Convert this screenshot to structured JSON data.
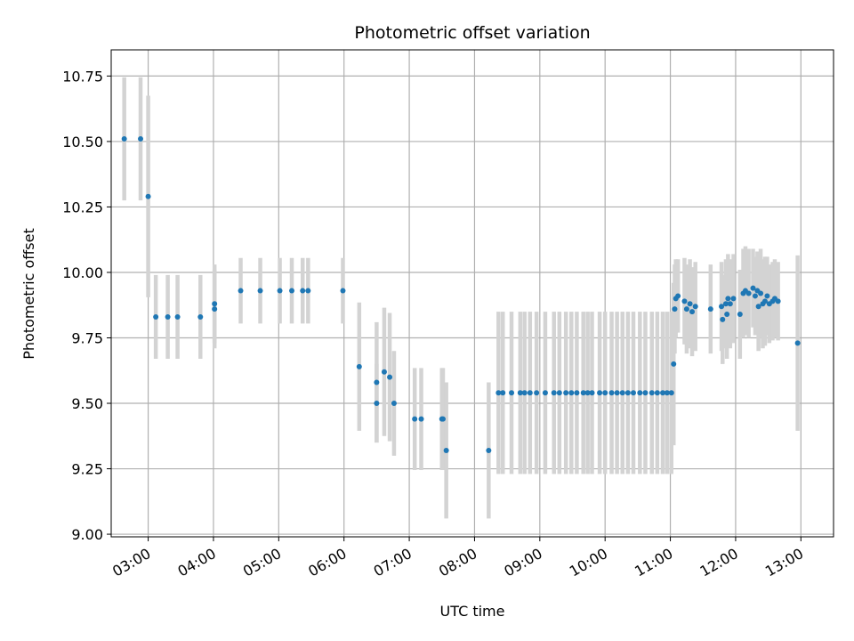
{
  "chart_data": {
    "type": "scatter",
    "title": "Photometric offset variation",
    "xlabel": "UTC time",
    "ylabel": "Photometric offset",
    "grid": true,
    "xlim": [
      "02:26",
      "13:30"
    ],
    "ylim": [
      8.99,
      10.85
    ],
    "x_ticks": [
      "03:00",
      "04:00",
      "05:00",
      "06:00",
      "07:00",
      "08:00",
      "09:00",
      "10:00",
      "11:00",
      "12:00",
      "13:00"
    ],
    "y_ticks": [
      "9.00",
      "9.25",
      "9.50",
      "9.75",
      "10.00",
      "10.25",
      "10.50",
      "10.75"
    ],
    "colors": {
      "points": "#1f77b4",
      "error_bars": "#d3d3d3",
      "grid": "#b0b0b0"
    },
    "series": [
      {
        "x": [
          "02:38",
          "02:53",
          "03:00",
          "03:07",
          "03:18",
          "03:27",
          "03:48",
          "04:01",
          "04:01",
          "04:25",
          "04:43",
          "05:01",
          "05:12",
          "05:22",
          "05:27",
          "05:59",
          "06:14",
          "06:30",
          "06:30",
          "06:37",
          "06:42",
          "06:46",
          "07:05",
          "07:11",
          "07:30",
          "07:31",
          "07:34",
          "08:13",
          "08:22",
          "08:26",
          "08:34",
          "08:42",
          "08:46",
          "08:51",
          "08:57",
          "09:05",
          "09:13",
          "09:18",
          "09:24",
          "09:29",
          "09:34",
          "09:40",
          "09:44",
          "09:48",
          "09:55",
          "10:00",
          "10:06",
          "10:11",
          "10:16",
          "10:21",
          "10:26",
          "10:32",
          "10:37",
          "10:43",
          "10:48",
          "10:53",
          "10:57",
          "11:01",
          "11:03",
          "11:04",
          "11:05",
          "11:07",
          "11:13",
          "11:15",
          "11:18",
          "11:20",
          "11:23",
          "11:37",
          "11:47",
          "11:48",
          "11:51",
          "11:52",
          "11:53",
          "11:55",
          "11:58",
          "12:04",
          "12:07",
          "12:09",
          "12:12",
          "12:16",
          "12:18",
          "12:20",
          "12:21",
          "12:23",
          "12:25",
          "12:27",
          "12:29",
          "12:31",
          "12:34",
          "12:36",
          "12:39",
          "12:57"
        ],
        "y": [
          10.51,
          10.51,
          10.29,
          9.83,
          9.83,
          9.83,
          9.83,
          9.86,
          9.88,
          9.93,
          9.93,
          9.93,
          9.93,
          9.93,
          9.93,
          9.93,
          9.64,
          9.58,
          9.5,
          9.62,
          9.6,
          9.5,
          9.44,
          9.44,
          9.44,
          9.44,
          9.32,
          9.32,
          9.54,
          9.54,
          9.54,
          9.54,
          9.54,
          9.54,
          9.54,
          9.54,
          9.54,
          9.54,
          9.54,
          9.54,
          9.54,
          9.54,
          9.54,
          9.54,
          9.54,
          9.54,
          9.54,
          9.54,
          9.54,
          9.54,
          9.54,
          9.54,
          9.54,
          9.54,
          9.54,
          9.54,
          9.54,
          9.54,
          9.65,
          9.86,
          9.9,
          9.91,
          9.89,
          9.86,
          9.88,
          9.85,
          9.87,
          9.86,
          9.87,
          9.82,
          9.88,
          9.84,
          9.9,
          9.88,
          9.9,
          9.84,
          9.92,
          9.93,
          9.92,
          9.94,
          9.91,
          9.93,
          9.87,
          9.92,
          9.88,
          9.89,
          9.91,
          9.88,
          9.89,
          9.9,
          9.89,
          9.73
        ],
        "yerr": [
          0.235,
          0.235,
          0.385,
          0.16,
          0.16,
          0.16,
          0.16,
          0.15,
          0.15,
          0.125,
          0.125,
          0.125,
          0.125,
          0.125,
          0.125,
          0.125,
          0.245,
          0.23,
          0.15,
          0.245,
          0.245,
          0.2,
          0.195,
          0.195,
          0.195,
          0.195,
          0.26,
          0.26,
          0.31,
          0.31,
          0.31,
          0.31,
          0.31,
          0.31,
          0.31,
          0.31,
          0.31,
          0.31,
          0.31,
          0.31,
          0.31,
          0.31,
          0.31,
          0.31,
          0.31,
          0.31,
          0.31,
          0.31,
          0.31,
          0.31,
          0.31,
          0.31,
          0.31,
          0.31,
          0.31,
          0.31,
          0.31,
          0.31,
          0.31,
          0.17,
          0.15,
          0.14,
          0.165,
          0.17,
          0.17,
          0.17,
          0.17,
          0.17,
          0.17,
          0.17,
          0.17,
          0.17,
          0.17,
          0.17,
          0.17,
          0.17,
          0.17,
          0.17,
          0.17,
          0.15,
          0.15,
          0.15,
          0.17,
          0.17,
          0.17,
          0.17,
          0.15,
          0.15,
          0.15,
          0.15,
          0.15,
          0.335
        ]
      }
    ]
  }
}
